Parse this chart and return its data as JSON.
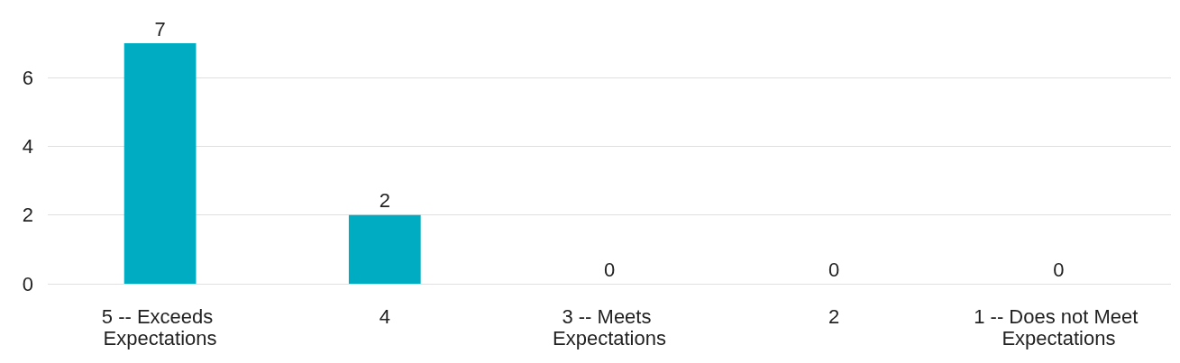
{
  "chart_data": {
    "type": "bar",
    "categories": [
      "5 -- Exceeds Expectations",
      "4",
      "3 -- Meets Expectations",
      "2",
      "1 -- Does not Meet Expectations"
    ],
    "values": [
      7,
      2,
      0,
      0,
      0
    ],
    "color": "#00acc1",
    "ylim": [
      0,
      7
    ],
    "yticks": [
      0,
      2,
      4,
      6
    ],
    "grid": "y",
    "data_labels": true
  }
}
